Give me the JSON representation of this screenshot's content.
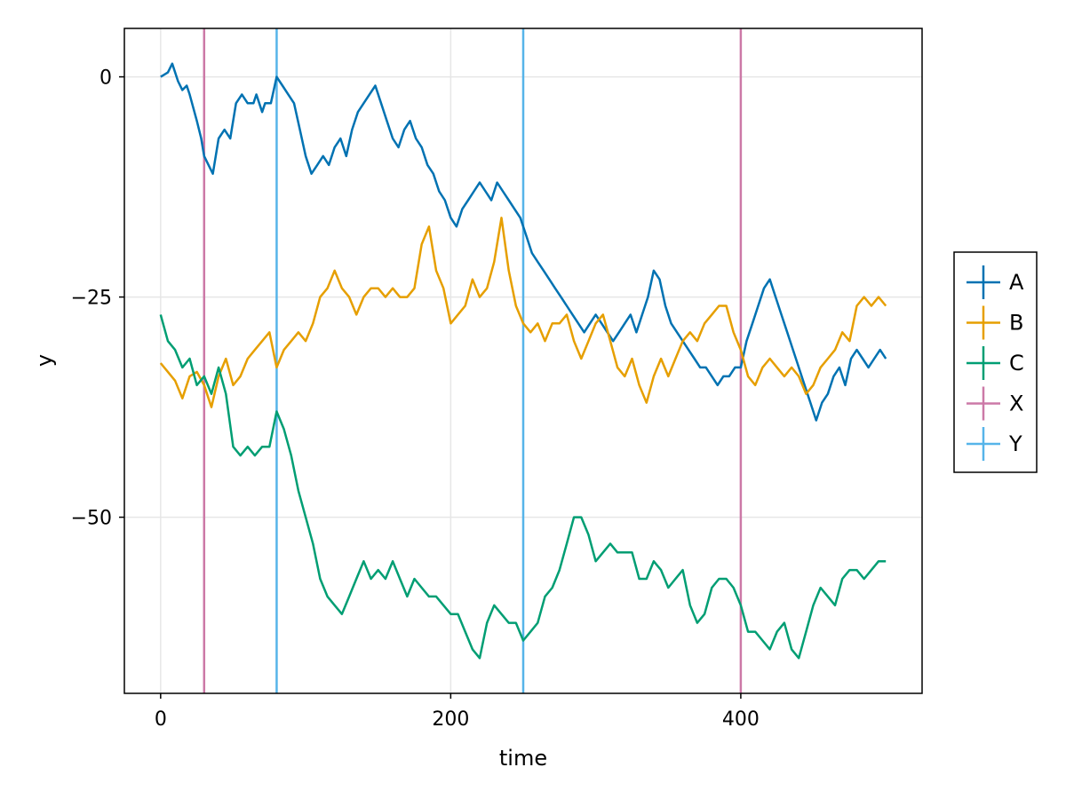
{
  "chart_data": {
    "type": "line",
    "title": "",
    "xlabel": "time",
    "ylabel": "y",
    "xlim": [
      -25,
      525
    ],
    "ylim": [
      -70,
      5.5
    ],
    "xticks": [
      0,
      200,
      400
    ],
    "yticks": [
      0,
      -25,
      -50
    ],
    "ytick_labels": [
      "0",
      "−25",
      "−50"
    ],
    "grid": true,
    "legend_position": "right",
    "series": [
      {
        "name": "A",
        "color": "#0072b2",
        "x": [
          0,
          5,
          8,
          12,
          15,
          18,
          20,
          25,
          28,
          30,
          33,
          36,
          40,
          44,
          48,
          52,
          56,
          60,
          64,
          66,
          70,
          72,
          76,
          80,
          84,
          88,
          92,
          96,
          100,
          104,
          108,
          112,
          116,
          120,
          124,
          128,
          132,
          136,
          140,
          144,
          148,
          152,
          156,
          160,
          164,
          168,
          172,
          176,
          180,
          184,
          188,
          192,
          196,
          200,
          204,
          208,
          212,
          216,
          220,
          224,
          228,
          232,
          236,
          240,
          244,
          248,
          252,
          256,
          260,
          264,
          268,
          272,
          276,
          280,
          284,
          288,
          292,
          296,
          300,
          304,
          308,
          312,
          316,
          320,
          324,
          328,
          332,
          336,
          340,
          344,
          348,
          352,
          356,
          360,
          364,
          368,
          372,
          376,
          380,
          384,
          388,
          392,
          396,
          400,
          404,
          408,
          412,
          416,
          420,
          424,
          428,
          432,
          436,
          440,
          444,
          448,
          452,
          456,
          460,
          464,
          468,
          472,
          476,
          480,
          484,
          488,
          492,
          496,
          500
        ],
        "y": [
          0,
          0.5,
          1.5,
          -0.5,
          -1.5,
          -1,
          -2,
          -5,
          -7,
          -9,
          -10,
          -11,
          -7,
          -6,
          -7,
          -3,
          -2,
          -3,
          -3,
          -2,
          -4,
          -3,
          -3,
          0,
          -1,
          -2,
          -3,
          -6,
          -9,
          -11,
          -10,
          -9,
          -10,
          -8,
          -7,
          -9,
          -6,
          -4,
          -3,
          -2,
          -1,
          -3,
          -5,
          -7,
          -8,
          -6,
          -5,
          -7,
          -8,
          -10,
          -11,
          -13,
          -14,
          -16,
          -17,
          -15,
          -14,
          -13,
          -12,
          -13,
          -14,
          -12,
          -13,
          -14,
          -15,
          -16,
          -18,
          -20,
          -21,
          -22,
          -23,
          -24,
          -25,
          -26,
          -27,
          -28,
          -29,
          -28,
          -27,
          -28,
          -29,
          -30,
          -29,
          -28,
          -27,
          -29,
          -27,
          -25,
          -22,
          -23,
          -26,
          -28,
          -29,
          -30,
          -31,
          -32,
          -33,
          -33,
          -34,
          -35,
          -34,
          -34,
          -33,
          -33,
          -30,
          -28,
          -26,
          -24,
          -23,
          -25,
          -27,
          -29,
          -31,
          -33,
          -35,
          -37,
          -39,
          -37,
          -36,
          -34,
          -33,
          -35,
          -32,
          -31,
          -32,
          -33,
          -32,
          -31,
          -32
        ]
      },
      {
        "name": "B",
        "color": "#e69f00",
        "x": [
          0,
          5,
          10,
          15,
          20,
          25,
          30,
          35,
          40,
          45,
          50,
          55,
          60,
          65,
          70,
          75,
          80,
          85,
          90,
          95,
          100,
          105,
          110,
          115,
          120,
          125,
          130,
          135,
          140,
          145,
          150,
          155,
          160,
          165,
          170,
          175,
          180,
          185,
          190,
          195,
          200,
          205,
          210,
          215,
          220,
          225,
          230,
          235,
          240,
          245,
          250,
          255,
          260,
          265,
          270,
          275,
          280,
          285,
          290,
          295,
          300,
          305,
          310,
          315,
          320,
          325,
          330,
          335,
          340,
          345,
          350,
          355,
          360,
          365,
          370,
          375,
          380,
          385,
          390,
          395,
          400,
          405,
          410,
          415,
          420,
          425,
          430,
          435,
          440,
          445,
          450,
          455,
          460,
          465,
          470,
          475,
          480,
          485,
          490,
          495,
          500
        ],
        "y": [
          -32.5,
          -33.5,
          -34.5,
          -36.5,
          -34,
          -33.5,
          -35,
          -37.5,
          -34,
          -32,
          -35,
          -34,
          -32,
          -31,
          -30,
          -29,
          -33,
          -31,
          -30,
          -29,
          -30,
          -28,
          -25,
          -24,
          -22,
          -24,
          -25,
          -27,
          -25,
          -24,
          -24,
          -25,
          -24,
          -25,
          -25,
          -24,
          -19,
          -17,
          -22,
          -24,
          -28,
          -27,
          -26,
          -23,
          -25,
          -24,
          -21,
          -16,
          -22,
          -26,
          -28,
          -29,
          -28,
          -30,
          -28,
          -28,
          -27,
          -30,
          -32,
          -30,
          -28,
          -27,
          -30,
          -33,
          -34,
          -32,
          -35,
          -37,
          -34,
          -32,
          -34,
          -32,
          -30,
          -29,
          -30,
          -28,
          -27,
          -26,
          -26,
          -29,
          -31,
          -34,
          -35,
          -33,
          -32,
          -33,
          -34,
          -33,
          -34,
          -36,
          -35,
          -33,
          -32,
          -31,
          -29,
          -30,
          -26,
          -25,
          -26,
          -25,
          -26
        ]
      },
      {
        "name": "C",
        "color": "#009e73",
        "x": [
          0,
          5,
          10,
          15,
          20,
          25,
          30,
          35,
          40,
          45,
          50,
          55,
          60,
          65,
          70,
          75,
          80,
          85,
          90,
          95,
          100,
          105,
          110,
          115,
          120,
          125,
          130,
          135,
          140,
          145,
          150,
          155,
          160,
          165,
          170,
          175,
          180,
          185,
          190,
          195,
          200,
          205,
          210,
          215,
          220,
          225,
          230,
          235,
          240,
          245,
          250,
          255,
          260,
          265,
          270,
          275,
          280,
          285,
          290,
          295,
          300,
          305,
          310,
          315,
          320,
          325,
          330,
          335,
          340,
          345,
          350,
          355,
          360,
          365,
          370,
          375,
          380,
          385,
          390,
          395,
          400,
          405,
          410,
          415,
          420,
          425,
          430,
          435,
          440,
          445,
          450,
          455,
          460,
          465,
          470,
          475,
          480,
          485,
          490,
          495,
          500
        ],
        "y": [
          -27,
          -30,
          -31,
          -33,
          -32,
          -35,
          -34,
          -36,
          -33,
          -36,
          -42,
          -43,
          -42,
          -43,
          -42,
          -42,
          -38,
          -40,
          -43,
          -47,
          -50,
          -53,
          -57,
          -59,
          -60,
          -61,
          -59,
          -57,
          -55,
          -57,
          -56,
          -57,
          -55,
          -57,
          -59,
          -57,
          -58,
          -59,
          -59,
          -60,
          -61,
          -61,
          -63,
          -65,
          -66,
          -62,
          -60,
          -61,
          -62,
          -62,
          -64,
          -63,
          -62,
          -59,
          -58,
          -56,
          -53,
          -50,
          -50,
          -52,
          -55,
          -54,
          -53,
          -54,
          -54,
          -54,
          -57,
          -57,
          -55,
          -56,
          -58,
          -57,
          -56,
          -60,
          -62,
          -61,
          -58,
          -57,
          -57,
          -58,
          -60,
          -63,
          -63,
          -64,
          -65,
          -63,
          -62,
          -65,
          -66,
          -63,
          -60,
          -58,
          -59,
          -60,
          -57,
          -56,
          -56,
          -57,
          -56,
          -55,
          -55
        ]
      },
      {
        "name": "X",
        "color": "#cc79a7",
        "type": "vline",
        "x": [
          30,
          400
        ]
      },
      {
        "name": "Y",
        "color": "#56b4e9",
        "type": "vline",
        "x": [
          80,
          250
        ]
      }
    ]
  }
}
